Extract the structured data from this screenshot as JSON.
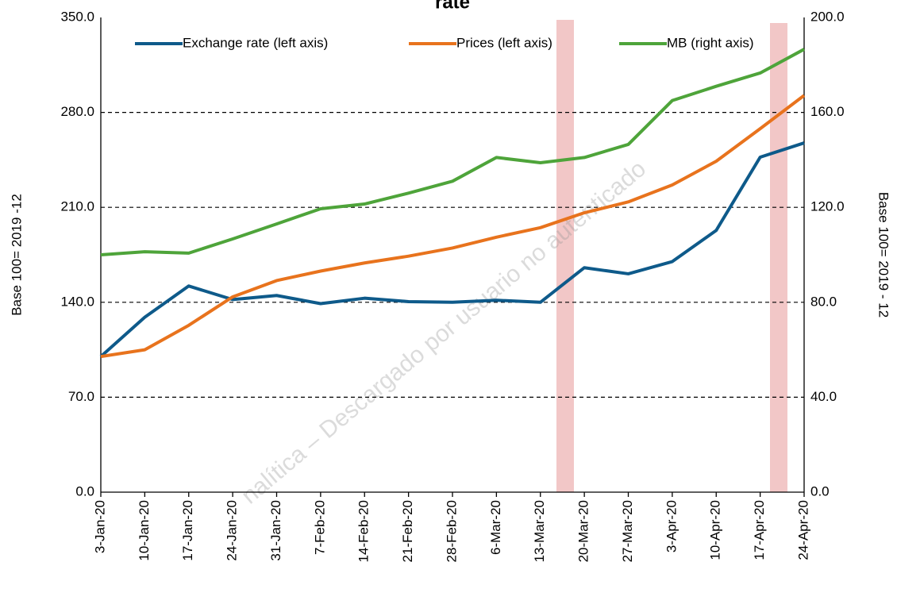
{
  "chart_data": {
    "type": "line",
    "title": "rate",
    "categories": [
      "3-Jan-20",
      "10-Jan-20",
      "17-Jan-20",
      "24-Jan-20",
      "31-Jan-20",
      "7-Feb-20",
      "14-Feb-20",
      "21-Feb-20",
      "28-Feb-20",
      "6-Mar-20",
      "13-Mar-20",
      "20-Mar-20",
      "27-Mar-20",
      "3-Apr-20",
      "10-Apr-20",
      "17-Apr-20",
      "24-Apr-20"
    ],
    "series": [
      {
        "name": "Exchange rate (left axis)",
        "color": "#0e5a8a",
        "values": [
          100,
          129,
          152,
          142,
          145,
          139,
          143,
          140.5,
          140,
          141.5,
          140,
          165.5,
          161,
          170,
          193,
          247,
          257.5
        ]
      },
      {
        "name": "Prices (left axis)",
        "color": "#e8731d",
        "values": [
          100,
          105,
          123,
          144,
          156,
          163,
          169,
          174,
          180,
          188,
          195,
          206,
          214,
          226.5,
          244,
          268,
          292.5
        ]
      },
      {
        "name": "MB (right axis)",
        "color": "#4ea43a",
        "axis": "y2",
        "values": [
          100,
          101.3,
          100.7,
          106.7,
          113,
          119.4,
          121.4,
          126,
          131,
          141,
          138.8,
          141,
          146.5,
          165,
          171,
          176.6,
          186.6
        ]
      }
    ],
    "ylabel": "Base 100= 2019 -12",
    "y2label": "Base 100= 2019 - 12",
    "ylim": [
      0,
      350
    ],
    "yticks": [
      {
        "value": 0,
        "label": "0.0"
      },
      {
        "value": 70,
        "label": "70.0"
      },
      {
        "value": 140,
        "label": "140.0"
      },
      {
        "value": 210,
        "label": "210.0"
      },
      {
        "value": 280,
        "label": "280.0"
      },
      {
        "value": 350,
        "label": "350.0"
      }
    ],
    "y2lim": [
      0,
      200
    ],
    "y2ticks": [
      {
        "value": 0,
        "label": "0.0"
      },
      {
        "value": 40,
        "label": "40.0"
      },
      {
        "value": 80,
        "label": "80.0"
      },
      {
        "value": 120,
        "label": "120.0"
      },
      {
        "value": 160,
        "label": "160.0"
      },
      {
        "value": 200,
        "label": "200.0"
      }
    ],
    "grid": true,
    "legend": "top",
    "annotation": "nalítica – Descargado por usuario no autenticado"
  }
}
